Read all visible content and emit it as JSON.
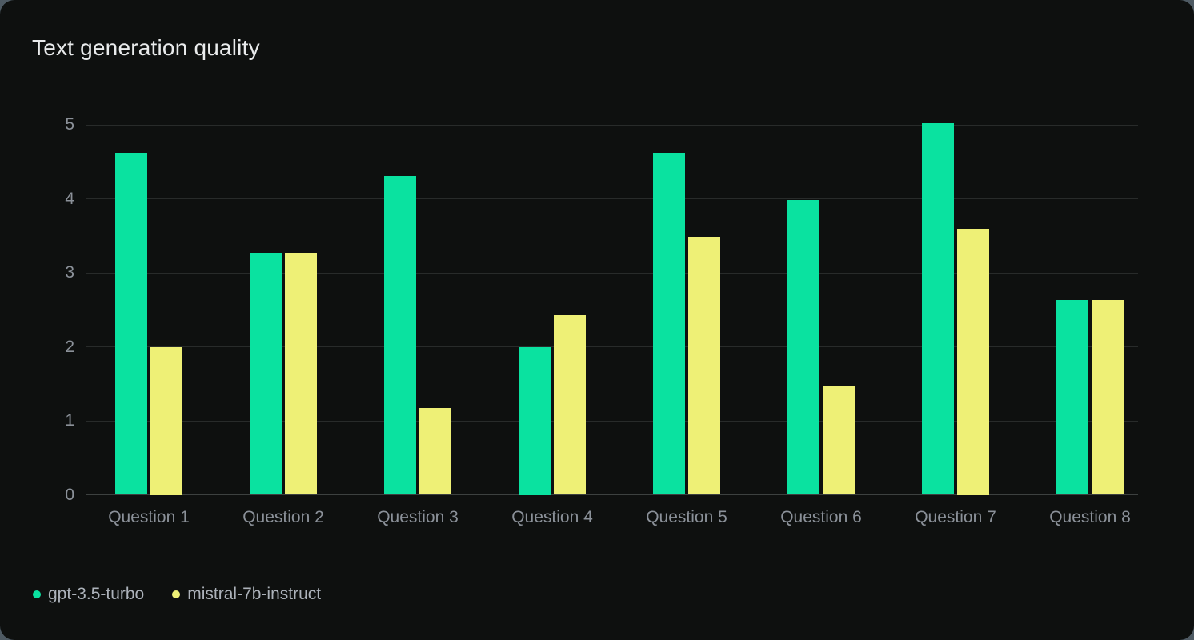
{
  "card": {
    "background": "#0e100f",
    "page_background": "#4e5a63"
  },
  "chart_data": {
    "type": "bar",
    "title": "Text generation quality",
    "xlabel": "",
    "ylabel": "",
    "ylim": [
      0,
      5
    ],
    "yticks": [
      "0",
      "1",
      "2",
      "3",
      "4",
      "5"
    ],
    "grid": true,
    "legend_position": "bottom-left",
    "categories": [
      "Question 1",
      "Question 2",
      "Question 3",
      "Question 4",
      "Question 5",
      "Question 6",
      "Question 7",
      "Question 8"
    ],
    "series": [
      {
        "name": "gpt-3.5-turbo",
        "color": "#0ae2a0",
        "values": [
          4.62,
          3.27,
          4.31,
          2.0,
          4.62,
          3.98,
          5.02,
          2.63
        ]
      },
      {
        "name": "mistral-7b-instruct",
        "color": "#eef076",
        "values": [
          2.0,
          3.27,
          1.17,
          2.43,
          3.49,
          1.48,
          3.6,
          2.63
        ]
      }
    ],
    "colors": {
      "title_text": "#e9ebec",
      "axis_text": "#8b9199",
      "legend_text": "#acb2ba",
      "gridline": "#282b2a",
      "zero_line": "#3d4140"
    }
  }
}
